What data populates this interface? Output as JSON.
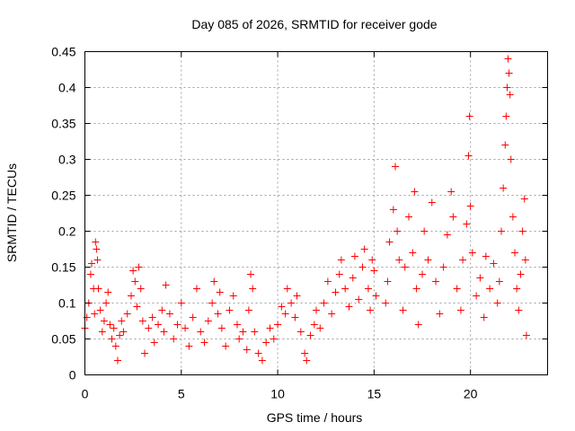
{
  "chart_data": {
    "type": "scatter",
    "title": "Day 085 of 2026, SRMTID for receiver gode",
    "xlabel": "GPS time / hours",
    "ylabel": "SRMTID / TECUs",
    "xlim": [
      0,
      24
    ],
    "ylim": [
      0,
      0.45
    ],
    "xticks": [
      0,
      5,
      10,
      15,
      20
    ],
    "xtick_labels": [
      "0",
      "5",
      "10",
      "15",
      "20"
    ],
    "yticks": [
      0,
      0.05,
      0.1,
      0.15,
      0.2,
      0.25,
      0.3,
      0.35,
      0.4,
      0.45
    ],
    "ytick_labels": [
      "0",
      "0.05",
      "0.1",
      "0.15",
      "0.2",
      "0.25",
      "0.3",
      "0.35",
      "0.4",
      "0.45"
    ],
    "grid": true,
    "marker": "+",
    "series_color": "#ff0000",
    "series": [
      {
        "name": "SRMTID",
        "points": [
          [
            0.0,
            0.065
          ],
          [
            0.1,
            0.08
          ],
          [
            0.2,
            0.1
          ],
          [
            0.3,
            0.14
          ],
          [
            0.35,
            0.155
          ],
          [
            0.45,
            0.12
          ],
          [
            0.5,
            0.085
          ],
          [
            0.55,
            0.185
          ],
          [
            0.6,
            0.175
          ],
          [
            0.65,
            0.16
          ],
          [
            0.7,
            0.12
          ],
          [
            0.8,
            0.09
          ],
          [
            0.9,
            0.06
          ],
          [
            1.0,
            0.075
          ],
          [
            1.1,
            0.1
          ],
          [
            1.2,
            0.115
          ],
          [
            1.3,
            0.07
          ],
          [
            1.4,
            0.05
          ],
          [
            1.5,
            0.065
          ],
          [
            1.6,
            0.04
          ],
          [
            1.7,
            0.02
          ],
          [
            1.8,
            0.055
          ],
          [
            1.9,
            0.075
          ],
          [
            2.0,
            0.06
          ],
          [
            2.2,
            0.085
          ],
          [
            2.4,
            0.11
          ],
          [
            2.5,
            0.145
          ],
          [
            2.6,
            0.13
          ],
          [
            2.7,
            0.095
          ],
          [
            2.8,
            0.15
          ],
          [
            2.9,
            0.12
          ],
          [
            3.0,
            0.075
          ],
          [
            3.1,
            0.03
          ],
          [
            3.3,
            0.065
          ],
          [
            3.5,
            0.08
          ],
          [
            3.6,
            0.045
          ],
          [
            3.8,
            0.07
          ],
          [
            4.0,
            0.09
          ],
          [
            4.1,
            0.06
          ],
          [
            4.2,
            0.125
          ],
          [
            4.4,
            0.085
          ],
          [
            4.6,
            0.05
          ],
          [
            4.8,
            0.07
          ],
          [
            5.0,
            0.1
          ],
          [
            5.2,
            0.065
          ],
          [
            5.4,
            0.04
          ],
          [
            5.6,
            0.08
          ],
          [
            5.8,
            0.12
          ],
          [
            6.0,
            0.06
          ],
          [
            6.2,
            0.045
          ],
          [
            6.4,
            0.075
          ],
          [
            6.6,
            0.1
          ],
          [
            6.7,
            0.13
          ],
          [
            6.9,
            0.085
          ],
          [
            7.0,
            0.115
          ],
          [
            7.1,
            0.065
          ],
          [
            7.3,
            0.04
          ],
          [
            7.5,
            0.09
          ],
          [
            7.7,
            0.11
          ],
          [
            7.9,
            0.07
          ],
          [
            8.0,
            0.05
          ],
          [
            8.2,
            0.06
          ],
          [
            8.4,
            0.035
          ],
          [
            8.5,
            0.09
          ],
          [
            8.6,
            0.14
          ],
          [
            8.7,
            0.12
          ],
          [
            8.8,
            0.06
          ],
          [
            9.0,
            0.03
          ],
          [
            9.2,
            0.02
          ],
          [
            9.4,
            0.045
          ],
          [
            9.6,
            0.065
          ],
          [
            9.8,
            0.05
          ],
          [
            10.0,
            0.07
          ],
          [
            10.2,
            0.095
          ],
          [
            10.4,
            0.085
          ],
          [
            10.5,
            0.12
          ],
          [
            10.7,
            0.1
          ],
          [
            10.9,
            0.08
          ],
          [
            11.0,
            0.11
          ],
          [
            11.2,
            0.06
          ],
          [
            11.4,
            0.03
          ],
          [
            11.5,
            0.02
          ],
          [
            11.7,
            0.055
          ],
          [
            11.9,
            0.07
          ],
          [
            12.0,
            0.09
          ],
          [
            12.2,
            0.065
          ],
          [
            12.4,
            0.1
          ],
          [
            12.6,
            0.13
          ],
          [
            12.8,
            0.085
          ],
          [
            13.0,
            0.115
          ],
          [
            13.2,
            0.14
          ],
          [
            13.3,
            0.16
          ],
          [
            13.5,
            0.12
          ],
          [
            13.7,
            0.095
          ],
          [
            13.9,
            0.135
          ],
          [
            14.0,
            0.165
          ],
          [
            14.2,
            0.105
          ],
          [
            14.4,
            0.15
          ],
          [
            14.5,
            0.175
          ],
          [
            14.7,
            0.12
          ],
          [
            14.8,
            0.09
          ],
          [
            14.9,
            0.16
          ],
          [
            15.0,
            0.145
          ],
          [
            15.1,
            0.11
          ],
          [
            15.6,
            0.1
          ],
          [
            15.7,
            0.13
          ],
          [
            15.8,
            0.185
          ],
          [
            16.0,
            0.23
          ],
          [
            16.1,
            0.29
          ],
          [
            16.2,
            0.2
          ],
          [
            16.3,
            0.16
          ],
          [
            16.5,
            0.09
          ],
          [
            16.6,
            0.15
          ],
          [
            16.8,
            0.22
          ],
          [
            17.0,
            0.17
          ],
          [
            17.1,
            0.255
          ],
          [
            17.2,
            0.12
          ],
          [
            17.3,
            0.07
          ],
          [
            17.5,
            0.14
          ],
          [
            17.6,
            0.2
          ],
          [
            17.8,
            0.16
          ],
          [
            18.0,
            0.24
          ],
          [
            18.2,
            0.13
          ],
          [
            18.4,
            0.085
          ],
          [
            18.6,
            0.15
          ],
          [
            18.8,
            0.195
          ],
          [
            19.0,
            0.255
          ],
          [
            19.1,
            0.22
          ],
          [
            19.3,
            0.12
          ],
          [
            19.5,
            0.09
          ],
          [
            19.6,
            0.16
          ],
          [
            19.8,
            0.21
          ],
          [
            19.9,
            0.305
          ],
          [
            19.95,
            0.36
          ],
          [
            20.0,
            0.235
          ],
          [
            20.1,
            0.17
          ],
          [
            20.3,
            0.11
          ],
          [
            20.5,
            0.135
          ],
          [
            20.7,
            0.08
          ],
          [
            20.8,
            0.165
          ],
          [
            21.0,
            0.12
          ],
          [
            21.2,
            0.155
          ],
          [
            21.4,
            0.1
          ],
          [
            21.5,
            0.13
          ],
          [
            21.6,
            0.2
          ],
          [
            21.7,
            0.26
          ],
          [
            21.8,
            0.32
          ],
          [
            21.85,
            0.36
          ],
          [
            21.9,
            0.4
          ],
          [
            21.95,
            0.44
          ],
          [
            22.0,
            0.42
          ],
          [
            22.05,
            0.39
          ],
          [
            22.1,
            0.3
          ],
          [
            22.2,
            0.22
          ],
          [
            22.3,
            0.17
          ],
          [
            22.4,
            0.12
          ],
          [
            22.5,
            0.09
          ],
          [
            22.6,
            0.14
          ],
          [
            22.7,
            0.2
          ],
          [
            22.8,
            0.245
          ],
          [
            22.85,
            0.16
          ],
          [
            22.9,
            0.055
          ]
        ]
      }
    ]
  }
}
